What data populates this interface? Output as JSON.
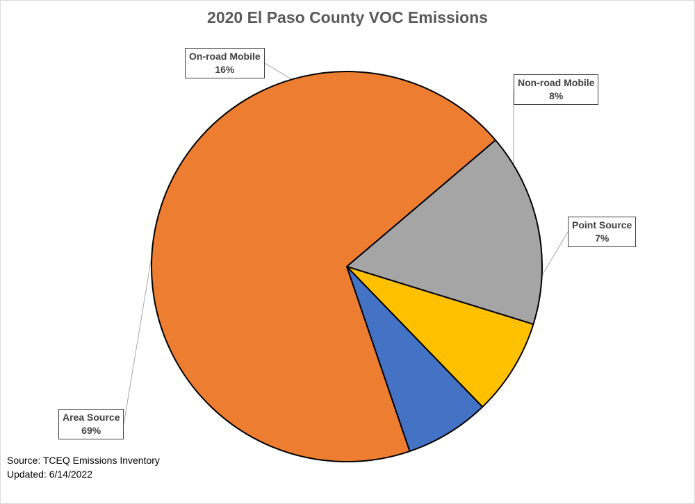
{
  "chart_data": {
    "type": "pie",
    "title": "2020 El Paso County VOC Emissions",
    "slices": [
      {
        "label": "Area Source",
        "value": 69,
        "value_label": "69%",
        "color": "#ed7d31"
      },
      {
        "label": "On-road Mobile",
        "value": 16,
        "value_label": "16%",
        "color": "#a5a5a5"
      },
      {
        "label": "Non-road Mobile",
        "value": 8,
        "value_label": "8%",
        "color": "#ffc000"
      },
      {
        "label": "Point Source",
        "value": 7,
        "value_label": "7%",
        "color": "#4472c4"
      }
    ],
    "legend": "none",
    "data_labels": "callouts"
  },
  "notes": {
    "source": "Source: TCEQ Emissions Inventory",
    "updated": "Updated: 6/14/2022"
  }
}
